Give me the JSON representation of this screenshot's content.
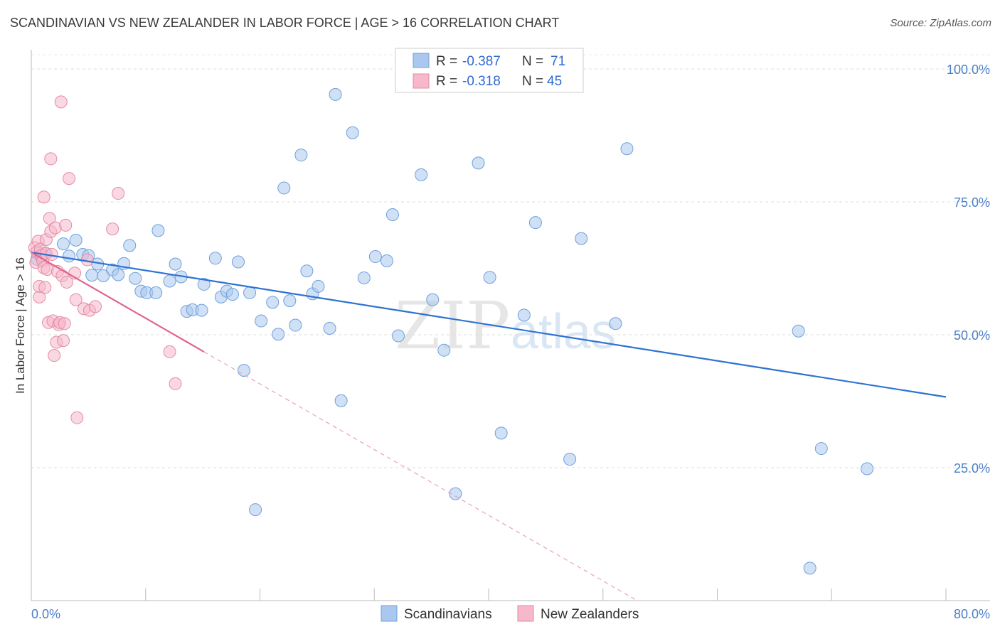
{
  "title": "SCANDINAVIAN VS NEW ZEALANDER IN LABOR FORCE | AGE > 16 CORRELATION CHART",
  "source": "Source: ZipAtlas.com",
  "watermark": {
    "zip": "ZIP",
    "atlas": "atlas"
  },
  "chart_data": {
    "type": "scatter",
    "ylabel": "In Labor Force | Age > 16",
    "xlim": [
      0,
      80
    ],
    "ylim": [
      0,
      105
    ],
    "x_tick_labels": {
      "left": "0.0%",
      "right": "80.0%"
    },
    "y_ticks": [
      {
        "value": 100,
        "label": "100.0%"
      },
      {
        "value": 75,
        "label": "75.0%"
      },
      {
        "value": 50,
        "label": "50.0%"
      },
      {
        "value": 25,
        "label": "25.0%"
      }
    ],
    "legend_stats": [
      {
        "r_label": "R =",
        "r_value": "-0.387",
        "n_label": "N =",
        "n_value": "71",
        "color": "#aac8ef"
      },
      {
        "r_label": "R =",
        "r_value": "-0.318",
        "n_label": "N =",
        "n_value": "45",
        "color": "#f6b8ca"
      }
    ],
    "series": [
      {
        "name": "Scandinavians",
        "color": "#aac8ef",
        "stroke": "#6f9fdc",
        "trend": {
          "x0": 0,
          "y0": 65.5,
          "x1": 80,
          "y1": 38.3,
          "color": "#2e72d2"
        },
        "points": [
          [
            0.5,
            64.2
          ],
          [
            0.8,
            64.8
          ],
          [
            1.2,
            65.3
          ],
          [
            2.8,
            67.1
          ],
          [
            3.3,
            64.8
          ],
          [
            3.9,
            67.8
          ],
          [
            4.5,
            65.1
          ],
          [
            5.0,
            64.9
          ],
          [
            5.3,
            61.2
          ],
          [
            5.8,
            63.3
          ],
          [
            6.3,
            61.1
          ],
          [
            7.1,
            62.2
          ],
          [
            7.6,
            61.3
          ],
          [
            8.1,
            63.4
          ],
          [
            8.6,
            66.8
          ],
          [
            9.1,
            60.6
          ],
          [
            9.6,
            58.2
          ],
          [
            10.1,
            57.9
          ],
          [
            10.9,
            57.9
          ],
          [
            11.1,
            69.6
          ],
          [
            12.1,
            60.1
          ],
          [
            12.6,
            63.3
          ],
          [
            13.1,
            60.9
          ],
          [
            13.6,
            54.4
          ],
          [
            14.1,
            54.7
          ],
          [
            14.9,
            54.6
          ],
          [
            15.1,
            59.5
          ],
          [
            16.1,
            64.4
          ],
          [
            16.6,
            57.1
          ],
          [
            17.1,
            58.2
          ],
          [
            17.6,
            57.6
          ],
          [
            18.1,
            63.7
          ],
          [
            18.6,
            43.3
          ],
          [
            19.1,
            57.9
          ],
          [
            19.6,
            17.1
          ],
          [
            20.1,
            52.6
          ],
          [
            21.1,
            56.1
          ],
          [
            21.6,
            50.1
          ],
          [
            22.1,
            77.6
          ],
          [
            22.6,
            56.4
          ],
          [
            23.1,
            51.8
          ],
          [
            23.6,
            83.8
          ],
          [
            24.1,
            62.0
          ],
          [
            24.6,
            57.7
          ],
          [
            25.1,
            59.1
          ],
          [
            26.1,
            51.2
          ],
          [
            26.6,
            95.2
          ],
          [
            27.1,
            37.6
          ],
          [
            28.1,
            88.0
          ],
          [
            29.1,
            60.7
          ],
          [
            30.1,
            64.7
          ],
          [
            31.1,
            63.9
          ],
          [
            31.6,
            72.6
          ],
          [
            32.1,
            49.8
          ],
          [
            34.1,
            80.1
          ],
          [
            35.1,
            56.6
          ],
          [
            36.1,
            47.1
          ],
          [
            37.1,
            20.1
          ],
          [
            39.1,
            82.3
          ],
          [
            40.1,
            60.8
          ],
          [
            41.1,
            31.5
          ],
          [
            43.1,
            53.7
          ],
          [
            44.1,
            71.1
          ],
          [
            47.1,
            26.6
          ],
          [
            48.1,
            68.1
          ],
          [
            51.1,
            52.1
          ],
          [
            52.1,
            85.0
          ],
          [
            67.1,
            50.7
          ],
          [
            68.1,
            6.1
          ],
          [
            69.1,
            28.6
          ],
          [
            73.1,
            24.8
          ]
        ]
      },
      {
        "name": "New Zealanders",
        "color": "#f6b8ca",
        "stroke": "#e58aa6",
        "trend": {
          "x0": 0,
          "y0": 65.5,
          "x1": 15.1,
          "y1": 46.8,
          "color": "#e2638d"
        },
        "trend_dashed": {
          "x0": 15.1,
          "y0": 46.8,
          "x1": 53,
          "y1": 0,
          "color": "#eca0b8"
        },
        "points": [
          [
            0.3,
            66.4
          ],
          [
            0.4,
            63.6
          ],
          [
            0.5,
            65.6
          ],
          [
            0.6,
            67.6
          ],
          [
            0.7,
            57.1
          ],
          [
            0.7,
            59.1
          ],
          [
            0.8,
            66.1
          ],
          [
            0.9,
            64.9
          ],
          [
            1.0,
            63.9
          ],
          [
            1.1,
            75.9
          ],
          [
            1.1,
            62.6
          ],
          [
            1.2,
            58.9
          ],
          [
            1.3,
            65.3
          ],
          [
            1.3,
            67.9
          ],
          [
            1.4,
            62.3
          ],
          [
            1.5,
            52.3
          ],
          [
            1.6,
            71.9
          ],
          [
            1.7,
            83.1
          ],
          [
            1.7,
            69.4
          ],
          [
            1.8,
            65.1
          ],
          [
            1.9,
            52.6
          ],
          [
            2.0,
            46.1
          ],
          [
            2.1,
            70.1
          ],
          [
            2.2,
            48.6
          ],
          [
            2.3,
            61.9
          ],
          [
            2.4,
            51.9
          ],
          [
            2.5,
            52.3
          ],
          [
            2.6,
            93.8
          ],
          [
            2.7,
            61.1
          ],
          [
            2.8,
            48.9
          ],
          [
            2.9,
            52.1
          ],
          [
            3.0,
            70.6
          ],
          [
            3.1,
            59.9
          ],
          [
            3.3,
            79.4
          ],
          [
            3.8,
            61.6
          ],
          [
            3.9,
            56.6
          ],
          [
            4.0,
            34.4
          ],
          [
            4.6,
            54.9
          ],
          [
            4.9,
            64.1
          ],
          [
            5.1,
            54.6
          ],
          [
            5.6,
            55.3
          ],
          [
            7.1,
            69.9
          ],
          [
            7.6,
            76.6
          ],
          [
            12.1,
            46.8
          ],
          [
            12.6,
            40.8
          ]
        ]
      }
    ]
  }
}
